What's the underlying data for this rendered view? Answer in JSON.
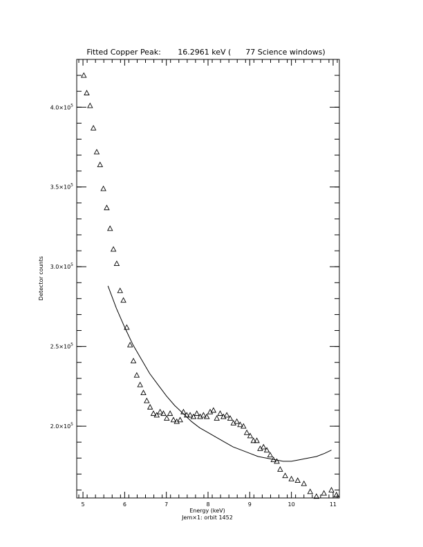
{
  "chart_data": {
    "type": "scatter",
    "title": "Fitted Copper Peak:       16.2961 keV (      77 Science windows)",
    "xlabel": "Energy (keV)",
    "ylabel": "Detector counts",
    "subtitle": "Jem×1: orbit 1452",
    "xlim": [
      4.85,
      11.15
    ],
    "ylim": [
      155000,
      430000
    ],
    "x_ticks": [
      5,
      6,
      7,
      8,
      9,
      10,
      11
    ],
    "x_tick_labels": [
      "5",
      "6",
      "7",
      "8",
      "9",
      "10",
      "11"
    ],
    "y_ticks": [
      200000,
      250000,
      300000,
      350000,
      400000
    ],
    "y_tick_labels": [
      {
        "mant": "2.0×10",
        "exp": "5"
      },
      {
        "mant": "2.5×10",
        "exp": "5"
      },
      {
        "mant": "3.0×10",
        "exp": "5"
      },
      {
        "mant": "3.5×10",
        "exp": "5"
      },
      {
        "mant": "4.0×10",
        "exp": "5"
      }
    ],
    "grid": false,
    "series": [
      {
        "marker": "triangle",
        "x": [
          5.02,
          5.09,
          5.17,
          5.25,
          5.33,
          5.41,
          5.49,
          5.57,
          5.65,
          5.73,
          5.81,
          5.89,
          5.97,
          6.05,
          6.13,
          6.21,
          6.29,
          6.37,
          6.45,
          6.53,
          6.61,
          6.69,
          6.77,
          6.85,
          6.93,
          7.01,
          7.09,
          7.17,
          7.25,
          7.33,
          7.41,
          7.49,
          7.57,
          7.65,
          7.73,
          7.81,
          7.89,
          7.97,
          8.05,
          8.13,
          8.21,
          8.29,
          8.37,
          8.45,
          8.53,
          8.61,
          8.69,
          8.77,
          8.85,
          8.93,
          9.01,
          9.09,
          9.17,
          9.25,
          9.33,
          9.41,
          9.49,
          9.57,
          9.65,
          9.73,
          9.85,
          10.0,
          10.15,
          10.3,
          10.45,
          10.6,
          10.78,
          10.96,
          11.08
        ],
        "y": [
          420000,
          409000,
          401000,
          387000,
          372000,
          364000,
          349000,
          337000,
          324000,
          311000,
          302000,
          285000,
          279000,
          262000,
          251000,
          241000,
          232000,
          226000,
          221000,
          216000,
          212000,
          208000,
          207000,
          209000,
          208000,
          205000,
          208000,
          204000,
          203000,
          204000,
          209000,
          207000,
          207000,
          206000,
          208000,
          206000,
          207000,
          206000,
          209000,
          210000,
          205000,
          208000,
          206000,
          207000,
          205000,
          202000,
          203000,
          201000,
          200000,
          196000,
          194000,
          191000,
          191000,
          186000,
          187000,
          185000,
          182000,
          179000,
          178000,
          173000,
          169000,
          167000,
          166000,
          164000,
          159000,
          156000,
          158000,
          160000,
          157000
        ]
      },
      {
        "marker": "line",
        "x": [
          5.6,
          5.8,
          6.0,
          6.2,
          6.4,
          6.6,
          6.8,
          7.0,
          7.2,
          7.4,
          7.6,
          7.8,
          8.0,
          8.2,
          8.4,
          8.6,
          8.8,
          9.0,
          9.2,
          9.4,
          9.6,
          9.8,
          10.0,
          10.2,
          10.4,
          10.6,
          10.8,
          10.96
        ],
        "y": [
          288000,
          274000,
          262000,
          251000,
          242000,
          233000,
          226000,
          219000,
          213000,
          208000,
          203000,
          199000,
          196000,
          193000,
          190000,
          187000,
          185000,
          183000,
          181000,
          180000,
          179000,
          178000,
          178000,
          179000,
          180000,
          181000,
          183000,
          185000
        ]
      }
    ]
  }
}
